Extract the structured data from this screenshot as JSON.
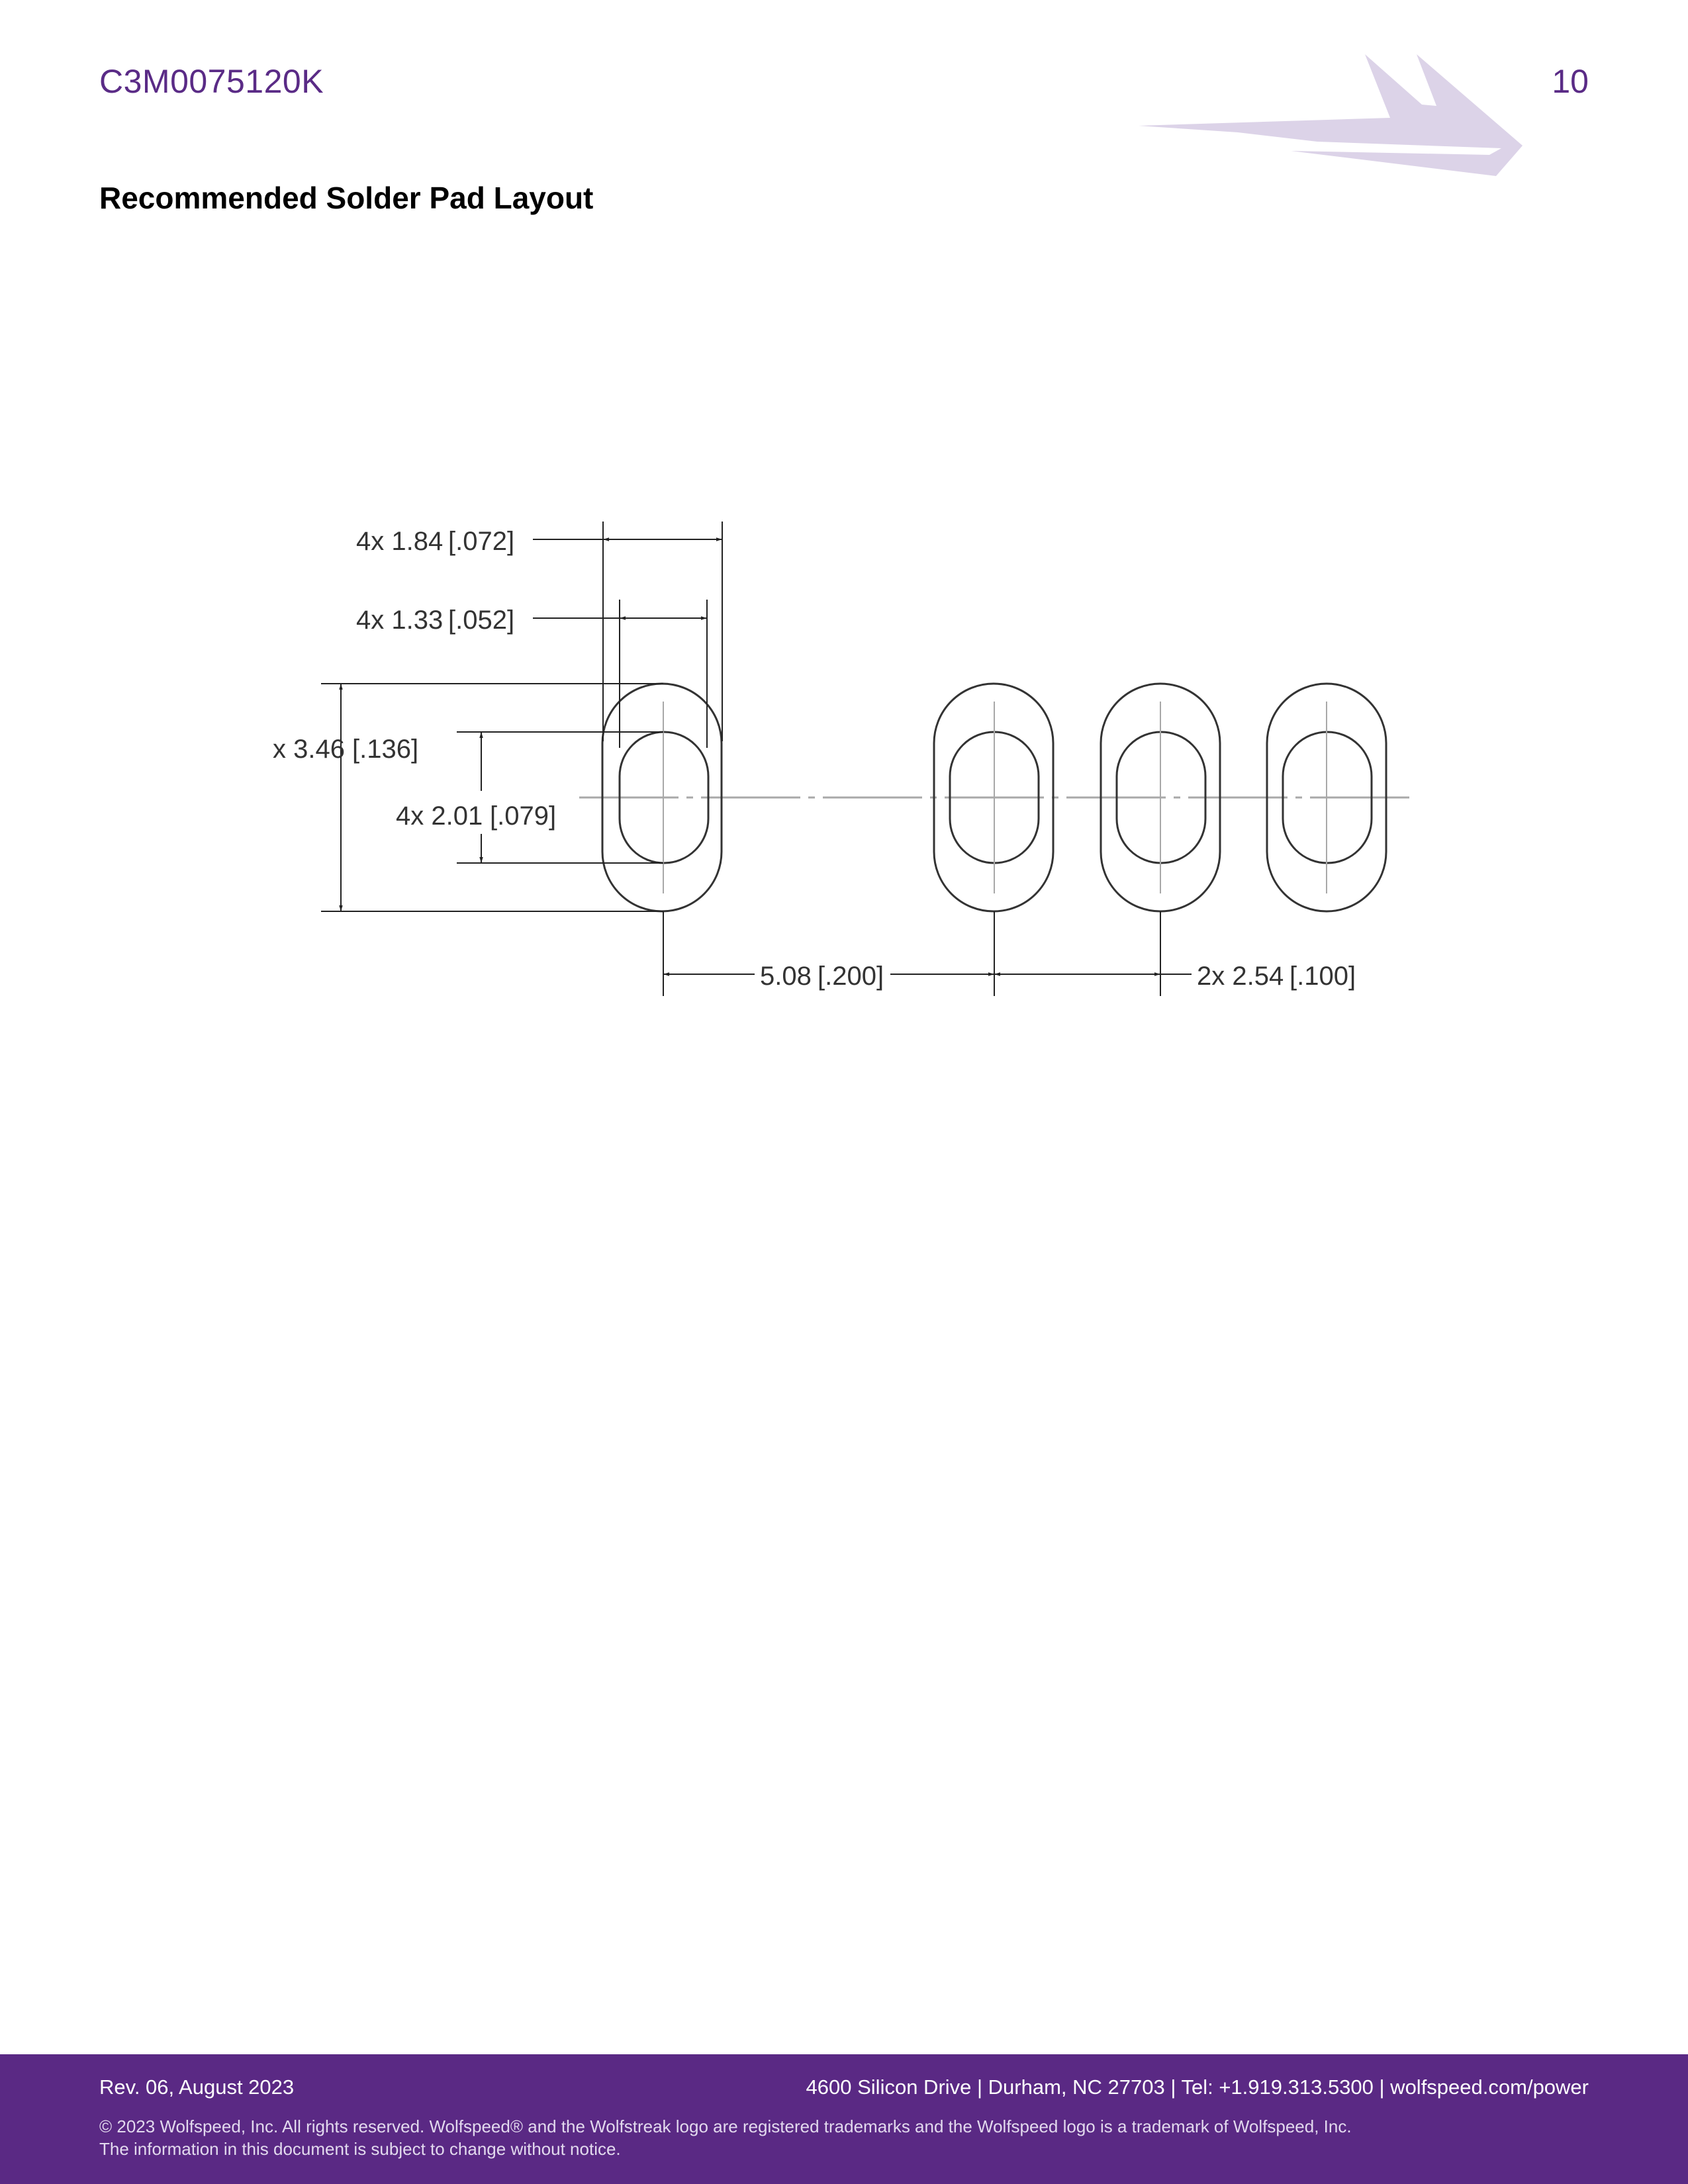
{
  "header": {
    "part_number": "C3M0075120K",
    "page_number": "10",
    "logo_name": "wolfstreak-logo"
  },
  "section": {
    "title": "Recommended Solder Pad Layout"
  },
  "drawing": {
    "dim_pad_outer_width": "4x 1.84",
    "dim_pad_outer_width_in": "[.072]",
    "dim_pad_inner_width": "4x 1.33",
    "dim_pad_inner_width_in": "[.052]",
    "dim_pad_outer_height": "x 3.46",
    "dim_pad_outer_height_in": "[.136]",
    "dim_pad_inner_height": "4x 2.01",
    "dim_pad_inner_height_in": "[.079]",
    "dim_pitch_first": "5.08",
    "dim_pitch_first_in": "[.200]",
    "dim_pitch_rest": "2x 2.54",
    "dim_pitch_rest_in": "[.100]"
  },
  "footer": {
    "revision": "Rev. 06, August 2023",
    "address": "4600 Silicon Drive  |  Durham, NC 27703  |  Tel: +1.919.313.5300  |  wolfspeed.com/power",
    "copyright": "© 2023 Wolfspeed, Inc. All rights reserved. Wolfspeed® and the Wolfstreak logo are registered trademarks and the Wolfspeed logo is a trademark of Wolfspeed, Inc.",
    "notice": "The information in this document is subject to change without notice."
  },
  "colors": {
    "brand_purple": "#5a2984",
    "logo_lavender": "#dcd3e8"
  }
}
